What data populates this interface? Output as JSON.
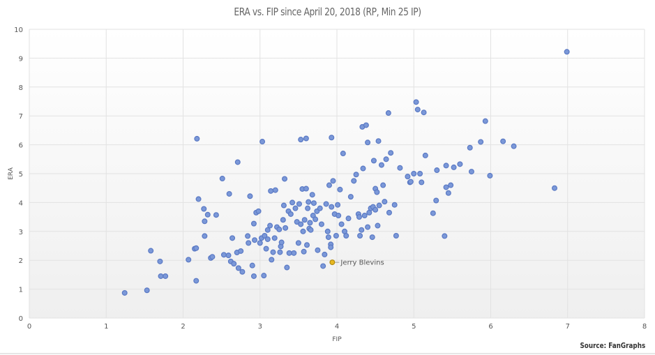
{
  "chart_data": {
    "type": "scatter",
    "title": "ERA vs. FIP since April 20, 2018 (RP, Min 25 IP)",
    "xlabel": "FIP",
    "ylabel": "ERA",
    "xlim": [
      0,
      8
    ],
    "ylim": [
      0,
      10
    ],
    "xticks": [
      "0",
      "1",
      "2",
      "3",
      "4",
      "5",
      "6",
      "7",
      "8"
    ],
    "yticks": [
      "0",
      "1",
      "2",
      "3",
      "4",
      "5",
      "6",
      "7",
      "8",
      "9",
      "10"
    ],
    "grid": true,
    "source": "Source: FanGraphs",
    "point_color": "#7b98d8",
    "point_stroke": "#5a79c4",
    "highlight_color": "#e8b820",
    "highlight": {
      "label": "Jerry Blevins",
      "x": 3.94,
      "y": 1.93
    },
    "points": [
      [
        1.24,
        0.87
      ],
      [
        1.53,
        0.96
      ],
      [
        1.58,
        2.33
      ],
      [
        1.7,
        1.96
      ],
      [
        1.71,
        1.45
      ],
      [
        1.77,
        1.45
      ],
      [
        2.07,
        2.02
      ],
      [
        2.15,
        2.4
      ],
      [
        2.17,
        1.29
      ],
      [
        2.17,
        2.42
      ],
      [
        2.18,
        6.21
      ],
      [
        2.2,
        4.12
      ],
      [
        2.27,
        3.78
      ],
      [
        2.28,
        3.35
      ],
      [
        2.28,
        2.84
      ],
      [
        2.32,
        3.58
      ],
      [
        2.36,
        2.08
      ],
      [
        2.38,
        2.12
      ],
      [
        2.43,
        3.57
      ],
      [
        2.51,
        4.83
      ],
      [
        2.53,
        2.19
      ],
      [
        2.59,
        2.17
      ],
      [
        2.6,
        4.3
      ],
      [
        2.62,
        1.96
      ],
      [
        2.64,
        2.77
      ],
      [
        2.66,
        1.88
      ],
      [
        2.7,
        2.27
      ],
      [
        2.71,
        5.4
      ],
      [
        2.72,
        1.73
      ],
      [
        2.75,
        2.32
      ],
      [
        2.77,
        1.6
      ],
      [
        2.84,
        2.84
      ],
      [
        2.85,
        2.6
      ],
      [
        2.87,
        4.22
      ],
      [
        2.9,
        1.82
      ],
      [
        2.92,
        3.27
      ],
      [
        2.92,
        1.45
      ],
      [
        2.93,
        2.7
      ],
      [
        2.95,
        3.65
      ],
      [
        2.98,
        3.7
      ],
      [
        3.0,
        2.6
      ],
      [
        3.02,
        2.77
      ],
      [
        3.03,
        6.11
      ],
      [
        3.05,
        1.47
      ],
      [
        3.06,
        2.85
      ],
      [
        3.08,
        2.4
      ],
      [
        3.1,
        3.05
      ],
      [
        3.1,
        2.73
      ],
      [
        3.13,
        3.2
      ],
      [
        3.14,
        4.4
      ],
      [
        3.15,
        2.02
      ],
      [
        3.17,
        2.28
      ],
      [
        3.19,
        2.77
      ],
      [
        3.2,
        4.43
      ],
      [
        3.22,
        3.15
      ],
      [
        3.25,
        3.07
      ],
      [
        3.26,
        2.28
      ],
      [
        3.27,
        2.48
      ],
      [
        3.28,
        2.62
      ],
      [
        3.3,
        3.4
      ],
      [
        3.31,
        3.9
      ],
      [
        3.32,
        4.82
      ],
      [
        3.33,
        3.12
      ],
      [
        3.35,
        1.75
      ],
      [
        3.37,
        3.7
      ],
      [
        3.38,
        2.25
      ],
      [
        3.4,
        3.6
      ],
      [
        3.42,
        4.0
      ],
      [
        3.44,
        2.25
      ],
      [
        3.46,
        3.8
      ],
      [
        3.48,
        3.33
      ],
      [
        3.5,
        2.6
      ],
      [
        3.51,
        3.95
      ],
      [
        3.53,
        3.25
      ],
      [
        3.53,
        6.18
      ],
      [
        3.55,
        4.47
      ],
      [
        3.56,
        3.0
      ],
      [
        3.57,
        2.3
      ],
      [
        3.58,
        3.4
      ],
      [
        3.6,
        4.48
      ],
      [
        3.6,
        6.22
      ],
      [
        3.61,
        2.53
      ],
      [
        3.62,
        3.8
      ],
      [
        3.63,
        4.02
      ],
      [
        3.64,
        3.1
      ],
      [
        3.65,
        3.3
      ],
      [
        3.66,
        3.05
      ],
      [
        3.68,
        4.27
      ],
      [
        3.69,
        3.55
      ],
      [
        3.7,
        3.98
      ],
      [
        3.72,
        3.42
      ],
      [
        3.74,
        3.7
      ],
      [
        3.75,
        2.35
      ],
      [
        3.78,
        3.8
      ],
      [
        3.8,
        3.25
      ],
      [
        3.82,
        1.8
      ],
      [
        3.84,
        2.2
      ],
      [
        3.86,
        3.95
      ],
      [
        3.88,
        3.0
      ],
      [
        3.89,
        2.8
      ],
      [
        3.9,
        4.6
      ],
      [
        3.92,
        2.55
      ],
      [
        3.92,
        2.45
      ],
      [
        3.93,
        6.25
      ],
      [
        3.93,
        3.85
      ],
      [
        3.95,
        4.75
      ],
      [
        3.97,
        3.6
      ],
      [
        3.99,
        2.85
      ],
      [
        4.01,
        3.92
      ],
      [
        4.02,
        3.55
      ],
      [
        4.04,
        4.45
      ],
      [
        4.06,
        3.25
      ],
      [
        4.08,
        5.7
      ],
      [
        4.1,
        3.0
      ],
      [
        4.12,
        2.85
      ],
      [
        4.15,
        3.45
      ],
      [
        4.18,
        4.2
      ],
      [
        4.22,
        4.75
      ],
      [
        4.25,
        4.97
      ],
      [
        4.28,
        3.6
      ],
      [
        4.29,
        3.5
      ],
      [
        4.3,
        2.85
      ],
      [
        4.32,
        3.05
      ],
      [
        4.33,
        6.62
      ],
      [
        4.34,
        5.18
      ],
      [
        4.36,
        3.55
      ],
      [
        4.38,
        6.68
      ],
      [
        4.4,
        6.08
      ],
      [
        4.4,
        3.15
      ],
      [
        4.42,
        3.65
      ],
      [
        4.44,
        3.8
      ],
      [
        4.46,
        2.8
      ],
      [
        4.47,
        3.85
      ],
      [
        4.48,
        5.45
      ],
      [
        4.5,
        3.75
      ],
      [
        4.5,
        4.48
      ],
      [
        4.52,
        4.36
      ],
      [
        4.53,
        3.2
      ],
      [
        4.54,
        6.13
      ],
      [
        4.55,
        3.9
      ],
      [
        4.58,
        5.3
      ],
      [
        4.6,
        4.6
      ],
      [
        4.62,
        4.03
      ],
      [
        4.64,
        5.5
      ],
      [
        4.67,
        7.1
      ],
      [
        4.68,
        3.65
      ],
      [
        4.7,
        5.72
      ],
      [
        4.75,
        3.92
      ],
      [
        4.77,
        2.85
      ],
      [
        4.82,
        5.2
      ],
      [
        4.92,
        4.9
      ],
      [
        4.95,
        4.7
      ],
      [
        4.96,
        4.72
      ],
      [
        5.0,
        5.0
      ],
      [
        5.03,
        7.48
      ],
      [
        5.05,
        7.22
      ],
      [
        5.08,
        5.0
      ],
      [
        5.1,
        4.7
      ],
      [
        5.13,
        7.12
      ],
      [
        5.15,
        5.63
      ],
      [
        5.25,
        3.63
      ],
      [
        5.29,
        4.07
      ],
      [
        5.3,
        5.12
      ],
      [
        5.4,
        2.84
      ],
      [
        5.42,
        5.28
      ],
      [
        5.42,
        4.53
      ],
      [
        5.45,
        4.33
      ],
      [
        5.48,
        4.6
      ],
      [
        5.52,
        5.22
      ],
      [
        5.6,
        5.33
      ],
      [
        5.73,
        5.9
      ],
      [
        5.75,
        5.07
      ],
      [
        5.87,
        6.1
      ],
      [
        5.93,
        6.82
      ],
      [
        5.99,
        4.93
      ],
      [
        6.16,
        6.12
      ],
      [
        6.3,
        5.95
      ],
      [
        6.83,
        4.5
      ],
      [
        6.99,
        9.22
      ]
    ]
  }
}
